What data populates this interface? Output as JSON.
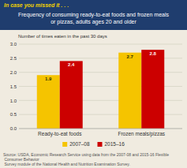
{
  "chart_data": {
    "type": "bar",
    "title": "Frequency of consuming ready-to-eat foods and frozen meals\nor pizzas, adults ages 20 and older",
    "subtitle": "In case you missed it . . .",
    "ylabel": "Number of times eaten in the past 30 days",
    "annotations": [
      "Source: USDA, Economic Research Service using data from the 2007-08 and 2015-16 Flexible Consumer Behavior\nSurvey module of the National Health and Nutrition Examination Survey."
    ],
    "categories": [
      "Ready-to-eat foods",
      "Frozen meals/pizzas"
    ],
    "series": [
      {
        "name": "2007–08",
        "color": "#F5C400",
        "values": [
          1.9,
          2.7
        ]
      },
      {
        "name": "2015–16",
        "color": "#CC0000",
        "values": [
          2.4,
          2.8
        ]
      }
    ],
    "ylim": [
      0,
      3.0
    ],
    "yticks": [
      {
        "value": 0.0,
        "label": "0.0"
      },
      0.5,
      {
        "value": 1.0,
        "label": "1.0"
      },
      1.5,
      {
        "value": 2.0,
        "label": "2.0"
      },
      2.5,
      {
        "value": 3.0,
        "label": "3.0"
      }
    ],
    "grid": true,
    "data_labels": true,
    "legend": "bottom"
  }
}
